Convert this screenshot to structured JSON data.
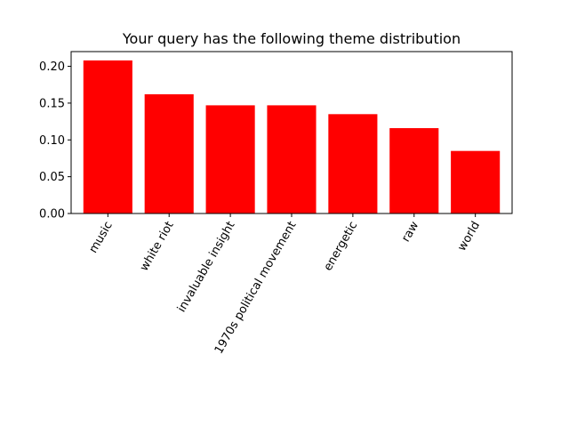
{
  "chart_data": {
    "type": "bar",
    "title": "Your query has the following theme distribution",
    "xlabel": "",
    "ylabel": "",
    "categories": [
      "music",
      "white riot",
      "invaluable insight",
      "1970s political movement",
      "energetic",
      "raw",
      "world"
    ],
    "values": [
      0.208,
      0.162,
      0.147,
      0.147,
      0.135,
      0.116,
      0.085
    ],
    "ylim": [
      0,
      0.22
    ],
    "yticks": [
      0.0,
      0.05,
      0.1,
      0.15,
      0.2
    ],
    "ytick_labels": [
      "0.00",
      "0.05",
      "0.10",
      "0.15",
      "0.20"
    ],
    "bar_color": "#ff0000",
    "grid": false,
    "xtick_rotation_deg": 60
  }
}
